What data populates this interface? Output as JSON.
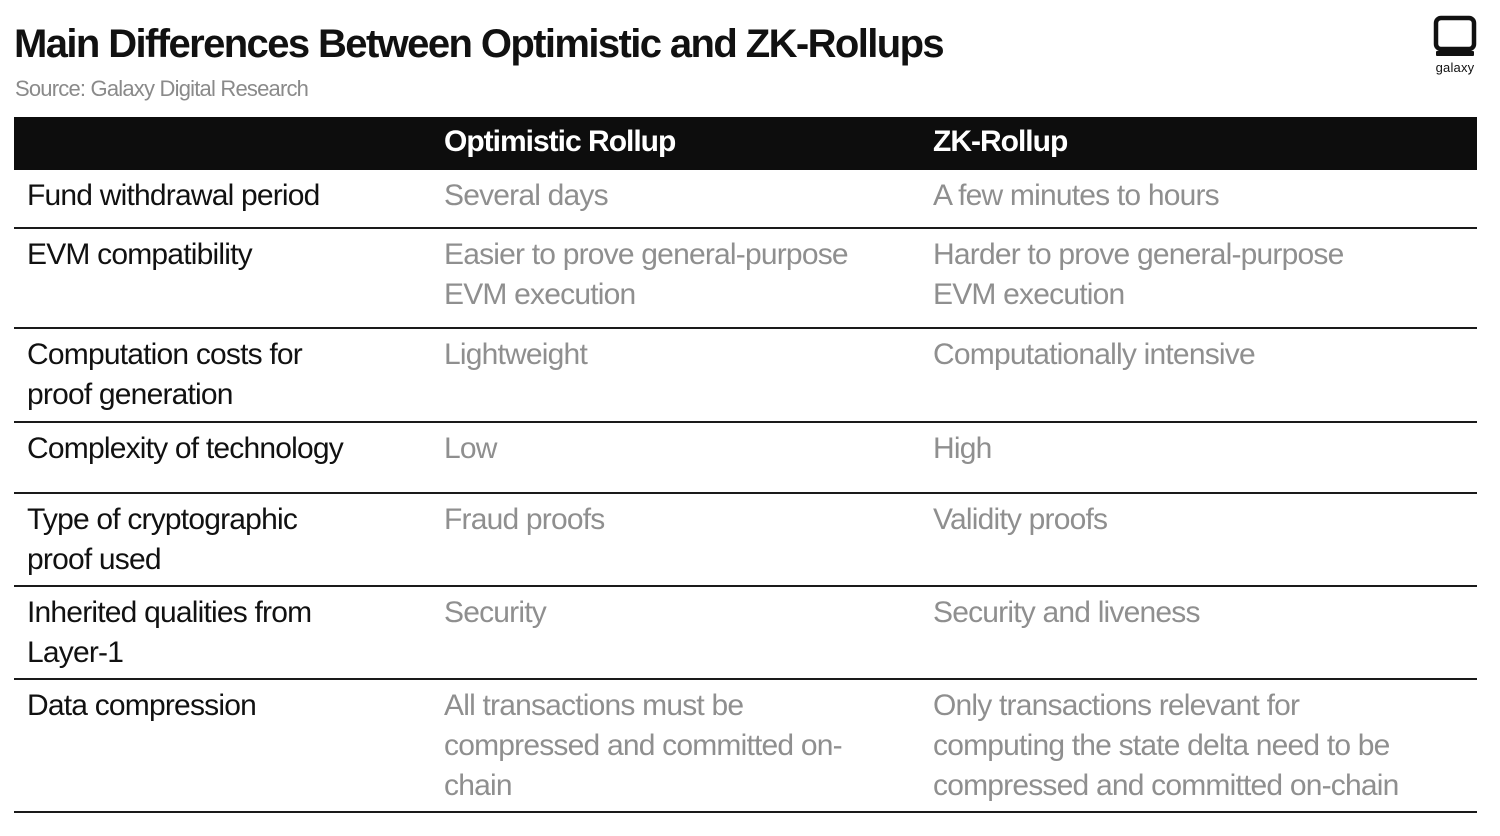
{
  "header": {
    "title": "Main Differences Between Optimistic and ZK-Rollups",
    "subtitle": "Source: Galaxy Digital Research",
    "logo_text": "galaxy"
  },
  "table": {
    "columns": [
      "",
      "Optimistic Rollup",
      "ZK-Rollup"
    ],
    "rows": [
      {
        "label": "Fund withdrawal period",
        "optimistic": "Several days",
        "zk": "A few minutes to hours"
      },
      {
        "label": "EVM compatibility",
        "optimistic": "Easier to prove general-purpose\nEVM execution",
        "zk": "Harder to prove general-purpose\nEVM execution"
      },
      {
        "label": "Computation costs for\nproof generation",
        "optimistic": "Lightweight",
        "zk": "Computationally intensive"
      },
      {
        "label": "Complexity of technology",
        "optimistic": "Low",
        "zk": "High"
      },
      {
        "label": "Type of cryptographic\nproof used",
        "optimistic": "Fraud proofs",
        "zk": "Validity proofs"
      },
      {
        "label": "Inherited qualities from\nLayer-1",
        "optimistic": "Security",
        "zk": "Security and liveness"
      },
      {
        "label": "Data compression",
        "optimistic": "All transactions must be\ncompressed and committed on-\nchain",
        "zk": "Only transactions relevant for\ncomputing the state delta need to be\ncompressed and committed on-chain"
      }
    ]
  }
}
